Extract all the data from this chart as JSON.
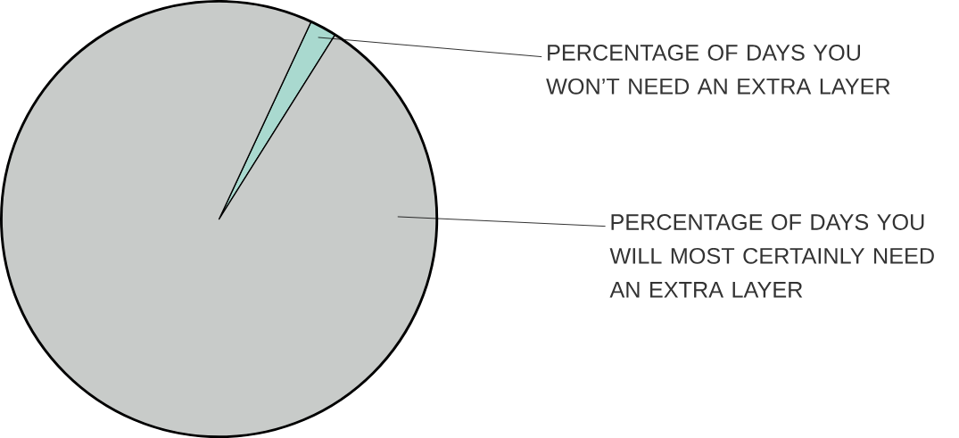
{
  "chart_data": {
    "type": "pie",
    "categories": [
      "PERCENTAGE OF DAYS YOU WON’T NEED AN EXTRA LAYER",
      "PERCENTAGE OF DAYS YOU WILL MOST CERTAINLY NEED AN EXTRA LAYER"
    ],
    "values": [
      2,
      98
    ],
    "colors": [
      "#a9d9cf",
      "#c8cbc9"
    ]
  }
}
